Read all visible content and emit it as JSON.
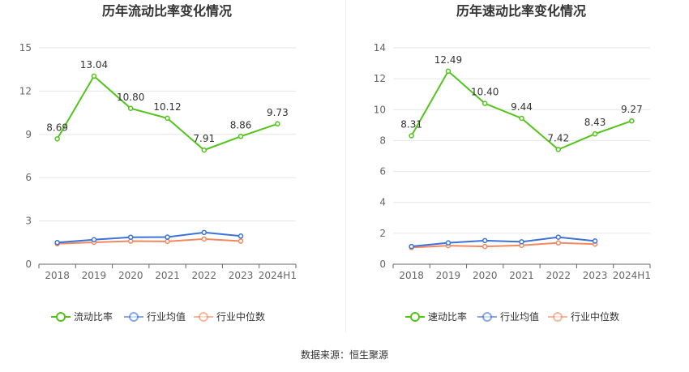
{
  "source_label": "数据来源：恒生聚源",
  "colors": {
    "primary": "#52c41a",
    "average": "#3b73d9",
    "median": "#f2895e"
  },
  "chart_data": [
    {
      "type": "line",
      "title": "历年流动比率变化情况",
      "categories": [
        "2018",
        "2019",
        "2020",
        "2021",
        "2022",
        "2023",
        "2024H1"
      ],
      "ylim": [
        0,
        15
      ],
      "yticks": [
        0,
        3,
        6,
        9,
        12,
        15
      ],
      "grid": true,
      "legend_position": "bottom",
      "series": [
        {
          "name": "流动比率",
          "values": [
            8.69,
            13.04,
            10.8,
            10.12,
            7.91,
            8.86,
            9.73
          ],
          "labels": [
            "8.69",
            "13.04",
            "10.80",
            "10.12",
            "7.91",
            "8.86",
            "9.73"
          ]
        },
        {
          "name": "行业均值",
          "values": [
            1.5,
            1.7,
            1.87,
            1.88,
            2.2,
            1.95,
            null
          ]
        },
        {
          "name": "行业中位数",
          "values": [
            1.42,
            1.52,
            1.6,
            1.58,
            1.75,
            1.6,
            null
          ]
        }
      ]
    },
    {
      "type": "line",
      "title": "历年速动比率变化情况",
      "categories": [
        "2018",
        "2019",
        "2020",
        "2021",
        "2022",
        "2023",
        "2024H1"
      ],
      "ylim": [
        0,
        14
      ],
      "yticks": [
        0,
        2,
        4,
        6,
        8,
        10,
        12,
        14
      ],
      "grid": true,
      "legend_position": "bottom",
      "series": [
        {
          "name": "速动比率",
          "values": [
            8.31,
            12.49,
            10.4,
            9.44,
            7.42,
            8.43,
            9.27
          ],
          "labels": [
            "8.31",
            "12.49",
            "10.40",
            "9.44",
            "7.42",
            "8.43",
            "9.27"
          ]
        },
        {
          "name": "行业均值",
          "values": [
            1.15,
            1.38,
            1.53,
            1.45,
            1.75,
            1.5,
            null
          ]
        },
        {
          "name": "行业中位数",
          "values": [
            1.08,
            1.2,
            1.15,
            1.22,
            1.38,
            1.3,
            null
          ]
        }
      ]
    }
  ]
}
